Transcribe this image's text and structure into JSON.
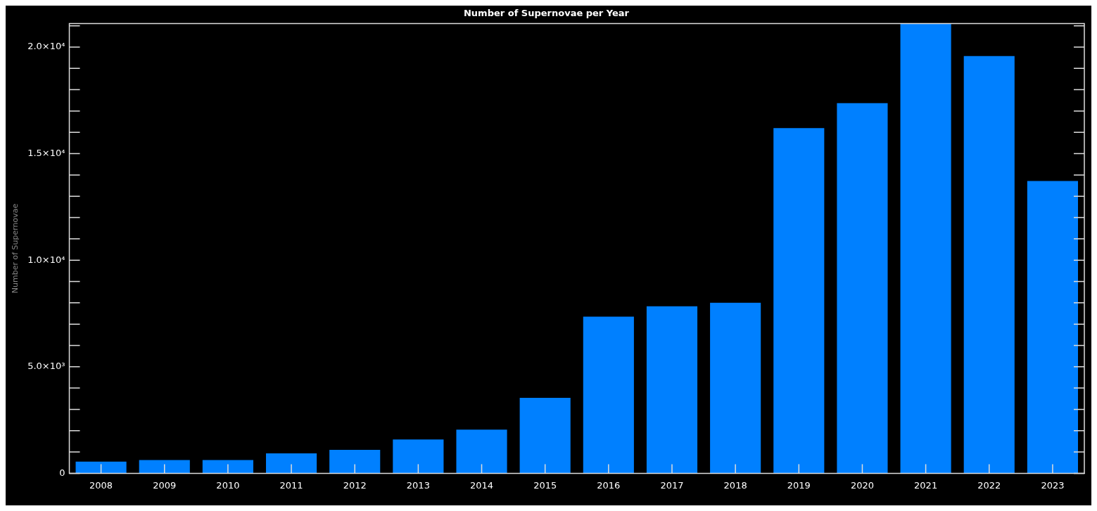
{
  "chart_data": {
    "type": "bar",
    "title": "Number of Supernovae per Year",
    "ylabel": "Number of Supernovae",
    "categories": [
      "2008",
      "2009",
      "2010",
      "2011",
      "2012",
      "2013",
      "2014",
      "2015",
      "2016",
      "2017",
      "2018",
      "2019",
      "2020",
      "2021",
      "2022",
      "2023"
    ],
    "values": [
      550,
      620,
      620,
      940,
      1100,
      1590,
      2050,
      3540,
      7350,
      7840,
      8000,
      16200,
      17370,
      21100,
      19580,
      13720
    ],
    "color": "#0080ff",
    "ylim": [
      0,
      21100
    ],
    "yticks": [
      {
        "value": 0,
        "label": "0"
      },
      {
        "value": 1000,
        "label": null
      },
      {
        "value": 2000,
        "label": null
      },
      {
        "value": 3000,
        "label": null
      },
      {
        "value": 4000,
        "label": null
      },
      {
        "value": 5000,
        "label": "5.0×10³"
      },
      {
        "value": 6000,
        "label": null
      },
      {
        "value": 7000,
        "label": null
      },
      {
        "value": 8000,
        "label": null
      },
      {
        "value": 9000,
        "label": null
      },
      {
        "value": 10000,
        "label": "1.0×10⁴"
      },
      {
        "value": 11000,
        "label": null
      },
      {
        "value": 12000,
        "label": null
      },
      {
        "value": 13000,
        "label": null
      },
      {
        "value": 14000,
        "label": null
      },
      {
        "value": 15000,
        "label": "1.5×10⁴"
      },
      {
        "value": 16000,
        "label": null
      },
      {
        "value": 17000,
        "label": null
      },
      {
        "value": 18000,
        "label": null
      },
      {
        "value": 19000,
        "label": null
      },
      {
        "value": 20000,
        "label": "2.0×10⁴"
      },
      {
        "value": 21000,
        "label": null
      }
    ],
    "legend": false
  }
}
